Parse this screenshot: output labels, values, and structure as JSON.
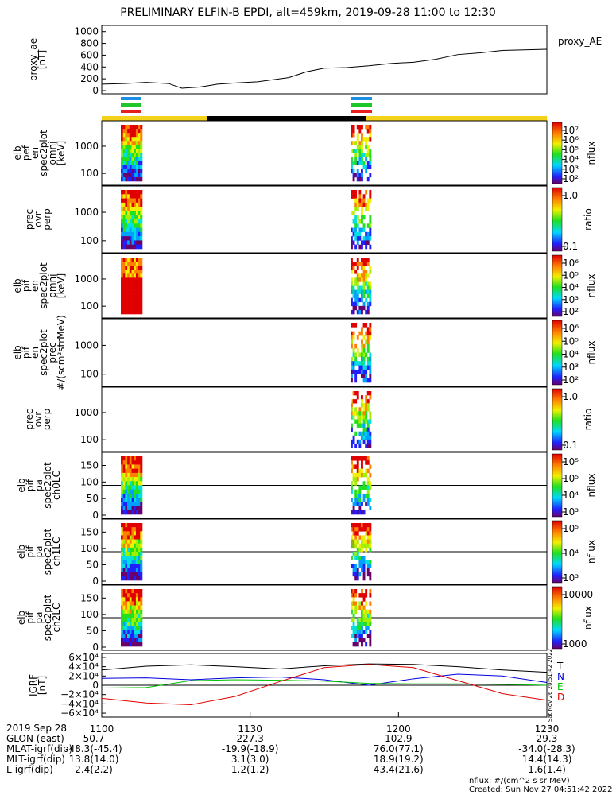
{
  "title": "PRELIMINARY ELFIN-B EPDI, alt=459km, 2019-09-28 11:00 to 12:30",
  "colors": {
    "orbit_yellow": "#f2d21b",
    "orbit_black": "#000000",
    "bar_blue": "#1e8de6",
    "bar_green": "#1ec82a",
    "bar_red": "#e61e1e",
    "igrf_t": "#000000",
    "igrf_n": "#0000e0",
    "igrf_e": "#00c000",
    "igrf_d": "#e00000"
  },
  "chart_data": [
    {
      "type": "line",
      "name": "proxy_ae",
      "ylabel_lines": [
        "proxy_ae",
        "[nT]"
      ],
      "legend": "proxy_AE",
      "yticks": [
        "0",
        "200",
        "400",
        "600",
        "800",
        "1000"
      ],
      "ylim": [
        0,
        1050
      ],
      "x": [
        0,
        0.05,
        0.1,
        0.15,
        0.18,
        0.22,
        0.26,
        0.3,
        0.35,
        0.38,
        0.42,
        0.46,
        0.5,
        0.55,
        0.6,
        0.65,
        0.7,
        0.75,
        0.8,
        0.85,
        0.9,
        0.95,
        1.0
      ],
      "y": [
        110,
        120,
        140,
        120,
        40,
        60,
        110,
        130,
        150,
        180,
        220,
        320,
        380,
        390,
        420,
        460,
        480,
        530,
        610,
        640,
        680,
        690,
        700
      ]
    },
    {
      "type": "heatmap",
      "name": "elb_pef_en_spec2plot_omni",
      "ylabel_lines": [
        "elb",
        "pef",
        "en",
        "spec2plot",
        "omni",
        "[keV]"
      ],
      "yticks": [
        "100",
        "1000"
      ],
      "colorbar_labels": [
        "10⁷",
        "10⁶",
        "10⁵",
        "10⁴",
        "10³",
        "10²"
      ],
      "colorbar_title": "nflux"
    },
    {
      "type": "heatmap",
      "name": "prec_ovr_perp_1",
      "ylabel_lines": [
        "prec",
        "ovr",
        "perp"
      ],
      "yticks": [
        "100",
        "1000"
      ],
      "colorbar_labels": [
        "1.0",
        "0.1"
      ],
      "colorbar_title": "ratio"
    },
    {
      "type": "heatmap",
      "name": "elb_pif_en_spec2plot_omni",
      "ylabel_lines": [
        "elb",
        "pif",
        "en",
        "spec2plot",
        "omni",
        "[keV]"
      ],
      "yticks": [
        "100",
        "1000"
      ],
      "colorbar_labels": [
        "10⁶",
        "10⁵",
        "10⁴",
        "10³",
        "10²"
      ],
      "colorbar_title": "nflux"
    },
    {
      "type": "heatmap",
      "name": "elb_pif_en_spec2plot_prec",
      "ylabel_lines": [
        "elb",
        "pif",
        "en",
        "spec2plot",
        "prec",
        "#/(scm²strMeV)"
      ],
      "yticks": [
        "100",
        "1000"
      ],
      "colorbar_labels": [
        "10⁶",
        "10⁵",
        "10⁴",
        "10³",
        "10²"
      ],
      "colorbar_title": "nflux"
    },
    {
      "type": "heatmap",
      "name": "prec_ovr_perp_2",
      "ylabel_lines": [
        "prec",
        "ovr",
        "perp"
      ],
      "yticks": [
        "100",
        "1000"
      ],
      "colorbar_labels": [
        "1.0",
        "0.1"
      ],
      "colorbar_title": "ratio"
    },
    {
      "type": "heatmap",
      "name": "elb_pif_pa_spec2plot_ch0LC",
      "ylabel_lines": [
        "elb",
        "pif",
        "pa",
        "spec2plot",
        "ch0LC"
      ],
      "yticks": [
        "0",
        "50",
        "100",
        "150"
      ],
      "colorbar_labels": [
        "10⁵",
        "10⁵",
        "10⁴",
        "10³"
      ],
      "colorbar_title": "nflux"
    },
    {
      "type": "heatmap",
      "name": "elb_pif_pa_spec2plot_ch1LC",
      "ylabel_lines": [
        "elb",
        "pif",
        "pa",
        "spec2plot",
        "ch1LC"
      ],
      "yticks": [
        "0",
        "50",
        "100",
        "150"
      ],
      "colorbar_labels": [
        "10⁵",
        "10⁴",
        "10³"
      ],
      "colorbar_title": "nflux"
    },
    {
      "type": "heatmap",
      "name": "elb_pif_pa_spec2plot_ch2LC",
      "ylabel_lines": [
        "elb",
        "pif",
        "pa",
        "spec2plot",
        "ch2LC"
      ],
      "yticks": [
        "0",
        "50",
        "100",
        "150"
      ],
      "colorbar_labels": [
        "10000",
        "1000"
      ],
      "colorbar_title": "nflux"
    },
    {
      "type": "line",
      "name": "igrf",
      "ylabel_lines": [
        "IGRF",
        "[nT]"
      ],
      "yticks": [
        "−6×10⁴",
        "−4×10⁴",
        "−2×10⁴",
        "0",
        "2×10⁴",
        "4×10⁴",
        "6×10⁴"
      ],
      "ylim": [
        -65000,
        65000
      ],
      "legend": [
        "T",
        "N",
        "E",
        "D"
      ],
      "side_note": "Sat Nov 26 20:51:42 2022",
      "x": [
        0,
        0.1,
        0.2,
        0.3,
        0.4,
        0.5,
        0.6,
        0.7,
        0.8,
        0.9,
        1.0
      ],
      "series": [
        {
          "name": "T",
          "values": [
            33000,
            41000,
            44000,
            40000,
            35000,
            42000,
            46000,
            45000,
            40000,
            33000,
            28000
          ]
        },
        {
          "name": "N",
          "values": [
            15000,
            16000,
            12000,
            16000,
            18000,
            12000,
            0,
            14000,
            24000,
            20000,
            6000
          ]
        },
        {
          "name": "E",
          "values": [
            -6000,
            -5000,
            10000,
            12000,
            11000,
            9000,
            4000,
            3000,
            3000,
            2000,
            0
          ]
        },
        {
          "name": "D",
          "values": [
            -28000,
            -38000,
            -42000,
            -24000,
            8000,
            38000,
            45000,
            38000,
            10000,
            -18000,
            -32000
          ]
        }
      ]
    }
  ],
  "x_axis": {
    "ticks": [
      "1100",
      "1130",
      "1200",
      "1230"
    ],
    "row_label": "2019 Sep 28"
  },
  "footer_rows": [
    {
      "label": "GLON (east)",
      "values": [
        "50.7",
        "227.3",
        "102.9",
        "29.3"
      ]
    },
    {
      "label": "MLAT-igrf(dip)",
      "values": [
        "-48.3(-45.4)",
        "-19.9(-18.9)",
        "76.0(77.1)",
        "-34.0(-28.3)"
      ]
    },
    {
      "label": "MLT-igrf(dip)",
      "values": [
        "13.8(14.0)",
        "3.1(3.0)",
        "18.9(19.2)",
        "14.4(14.3)"
      ]
    },
    {
      "label": "L-igrf(dip)",
      "values": [
        "2.4(2.2)",
        "1.2(1.2)",
        "43.4(21.6)",
        "1.6(1.4)"
      ]
    }
  ],
  "footnote": {
    "units": "nflux: #/(cm^2 s sr MeV)",
    "created": "Created: Sun Nov 27 04:51:42 2022"
  }
}
